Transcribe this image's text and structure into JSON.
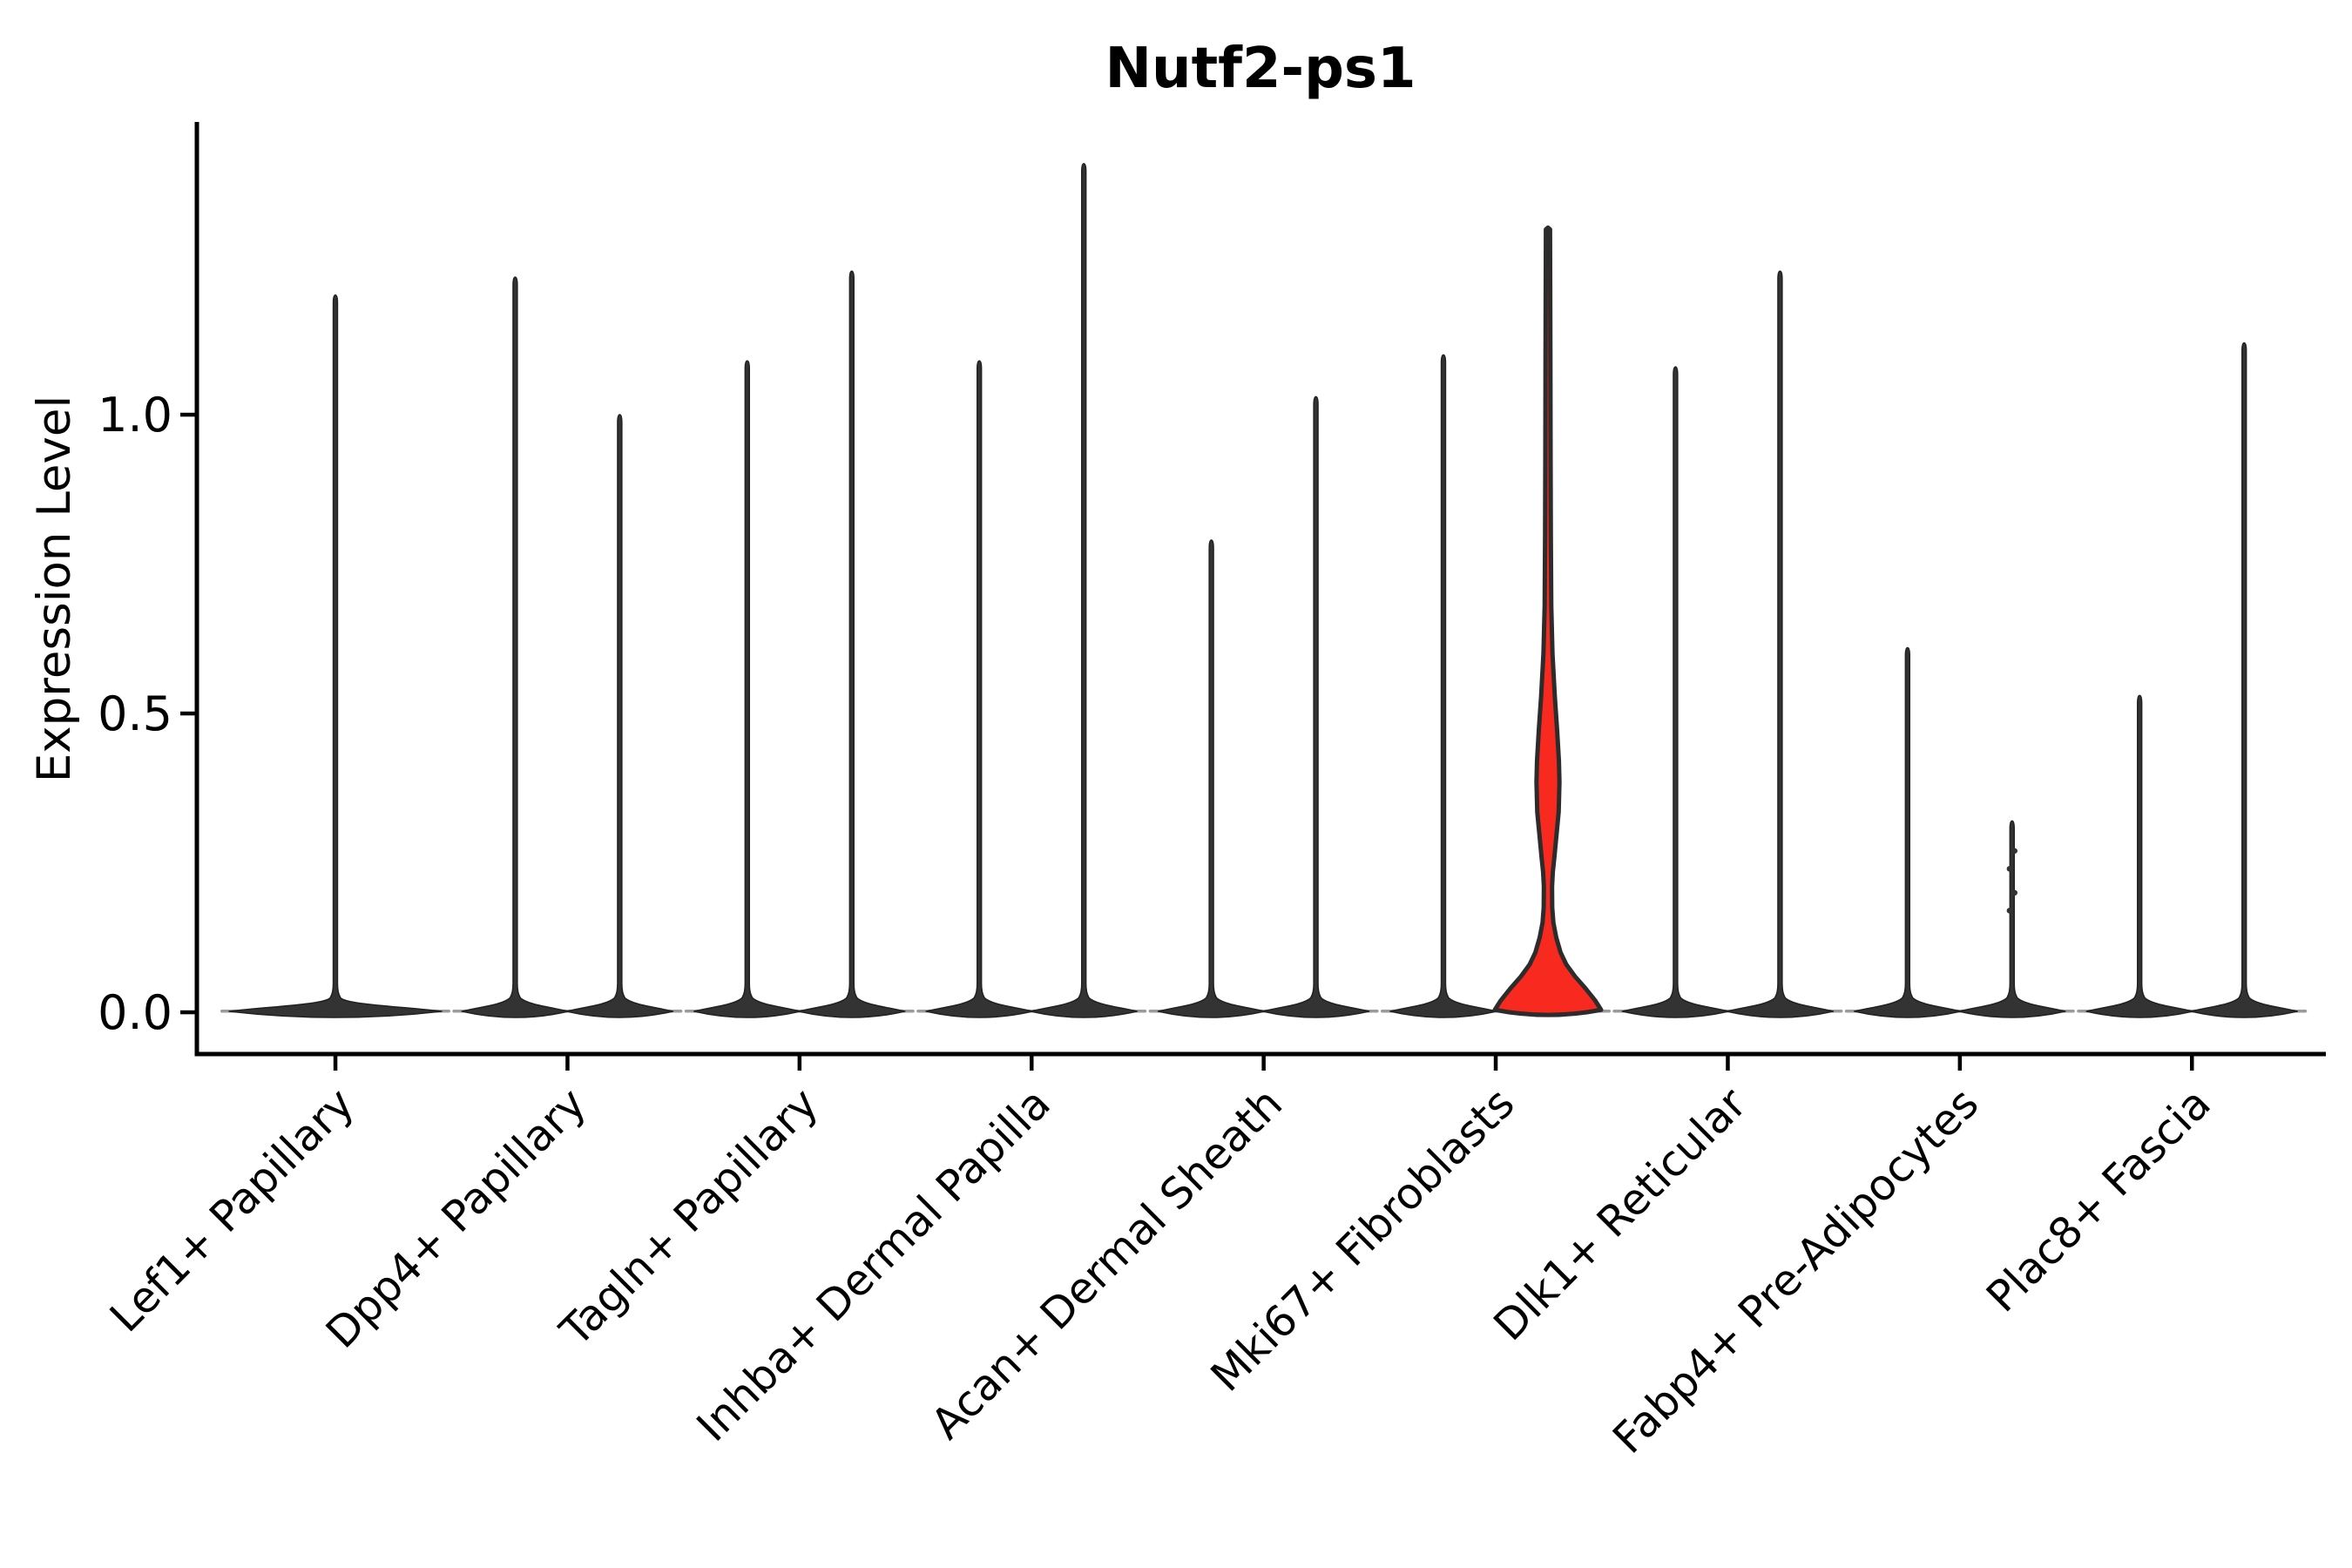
{
  "title": "Nutf2-ps1",
  "axes": {
    "y_label": "Expression Level",
    "y_ticks": [
      {
        "label": "1.0",
        "value": 1.0
      },
      {
        "label": "0.5",
        "value": 0.5
      },
      {
        "label": "0.0",
        "value": 0.0
      }
    ]
  },
  "chart_data": {
    "type": "violin",
    "title": "Nutf2-ps1",
    "xlabel": "",
    "ylabel": "Expression Level",
    "ylim": [
      0,
      1.47
    ],
    "grid": false,
    "legend": "none",
    "note": "Expression of Nutf2-ps1 across fibroblast subtypes; nearly all mass at 0 with thin spikes to max expression; Mki67+ Fibroblasts (right violin) highlighted red with a density bulge around 0.37",
    "categories": [
      "Lef1+ Papillary",
      "Dpp4+ Papillary",
      "Tagln+ Papillary",
      "Inhba+ Dermal Papilla",
      "Acan+ Dermal Sheath",
      "Mki67+ Fibroblasts",
      "Dlk1+ Reticular",
      "Fabp4+ Pre-Adipocytes",
      "Plac8+ Fascia"
    ],
    "violins": [
      {
        "category_index": 0,
        "position": "center",
        "max_expression": 1.2
      },
      {
        "category_index": 1,
        "position": "left",
        "max_expression": 1.23
      },
      {
        "category_index": 1,
        "position": "right",
        "max_expression": 1.0
      },
      {
        "category_index": 2,
        "position": "left",
        "max_expression": 1.09
      },
      {
        "category_index": 2,
        "position": "right",
        "max_expression": 1.24
      },
      {
        "category_index": 3,
        "position": "left",
        "max_expression": 1.09
      },
      {
        "category_index": 3,
        "position": "right",
        "max_expression": 1.42
      },
      {
        "category_index": 4,
        "position": "left",
        "max_expression": 0.79
      },
      {
        "category_index": 4,
        "position": "right",
        "max_expression": 1.03
      },
      {
        "category_index": 5,
        "position": "left",
        "max_expression": 1.1
      },
      {
        "category_index": 5,
        "position": "right",
        "max_expression": 1.31,
        "highlighted": true,
        "density_bulge": {
          "peak": 0.37,
          "from": 0.21,
          "to": 0.6
        }
      },
      {
        "category_index": 6,
        "position": "left",
        "max_expression": 1.08
      },
      {
        "category_index": 6,
        "position": "right",
        "max_expression": 1.24
      },
      {
        "category_index": 7,
        "position": "left",
        "max_expression": 0.61
      },
      {
        "category_index": 7,
        "position": "right",
        "max_expression": 0.32,
        "outlier_points": [
          0.27,
          0.24,
          0.2,
          0.17
        ]
      },
      {
        "category_index": 8,
        "position": "left",
        "max_expression": 0.53
      },
      {
        "category_index": 8,
        "position": "right",
        "max_expression": 1.12
      }
    ],
    "colors": {
      "violin_fill": "#333333",
      "violin_outline": "#222222",
      "highlight_fill": "#f8291e",
      "base_tail": "#8a8a8a",
      "axis": "#000000"
    }
  }
}
